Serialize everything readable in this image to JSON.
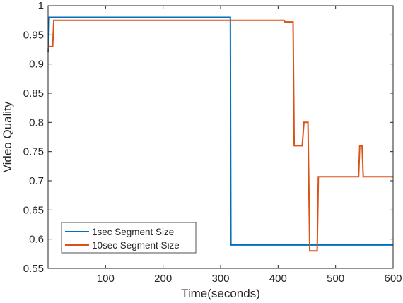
{
  "chart_data": {
    "type": "line",
    "xlabel": "Time(seconds)",
    "ylabel": "Video Quality",
    "xlim": [
      0,
      600
    ],
    "ylim": [
      0.55,
      1
    ],
    "xticks": [
      100,
      200,
      300,
      400,
      500,
      600
    ],
    "xtick_labels": [
      "100",
      "200",
      "300",
      "400",
      "500",
      "600"
    ],
    "yticks": [
      0.55,
      0.6,
      0.65,
      0.7,
      0.75,
      0.8,
      0.85,
      0.9,
      0.95,
      1
    ],
    "ytick_labels": [
      "0.55",
      "0.6",
      "0.65",
      "0.7",
      "0.75",
      "0.8",
      "0.85",
      "0.9",
      "0.95",
      "1"
    ],
    "grid": false,
    "legend_position": "bottom-left",
    "series": [
      {
        "name": "1sec Segment Size",
        "color": "#0072BD",
        "points": [
          [
            0,
            0.92
          ],
          [
            1,
            0.93
          ],
          [
            2,
            0.98
          ],
          [
            317,
            0.98
          ],
          [
            318,
            0.59
          ],
          [
            600,
            0.59
          ]
        ]
      },
      {
        "name": "10sec Segment Size",
        "color": "#D95319",
        "points": [
          [
            0,
            0.925
          ],
          [
            1,
            0.93
          ],
          [
            8,
            0.93
          ],
          [
            10,
            0.975
          ],
          [
            410,
            0.975
          ],
          [
            412,
            0.972
          ],
          [
            426,
            0.972
          ],
          [
            428,
            0.76
          ],
          [
            442,
            0.76
          ],
          [
            445,
            0.8
          ],
          [
            452,
            0.8
          ],
          [
            455,
            0.58
          ],
          [
            468,
            0.58
          ],
          [
            470,
            0.707
          ],
          [
            540,
            0.707
          ],
          [
            542,
            0.76
          ],
          [
            546,
            0.76
          ],
          [
            548,
            0.707
          ],
          [
            600,
            0.707
          ]
        ]
      }
    ]
  }
}
